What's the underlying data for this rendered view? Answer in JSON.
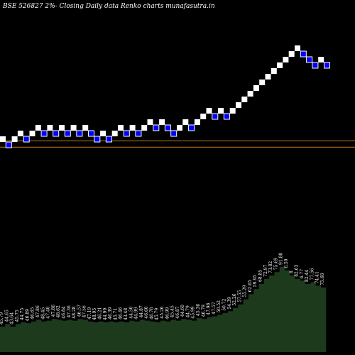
{
  "title": "BSE 526827 2%-  Closing Daily data  Renko  charts munafasutra.in",
  "colors": {
    "background": "#000000",
    "up_brick": "#ffffff",
    "down_brick": "#0000ff",
    "down_brick_border": "#ffffff",
    "hline": "#c87a1e",
    "volume_fill": "#1d3a1d",
    "text": "#ffffff"
  },
  "chart_data": [
    {
      "type": "renko",
      "title": "BSE 526827 2%-  Closing Daily data  Renko  charts munafasutra.in",
      "levels": 25,
      "bricks": [
        {
          "level": 3,
          "dir": "up"
        },
        {
          "level": 2,
          "dir": "down"
        },
        {
          "level": 3,
          "dir": "up"
        },
        {
          "level": 4,
          "dir": "up"
        },
        {
          "level": 3,
          "dir": "down"
        },
        {
          "level": 4,
          "dir": "up"
        },
        {
          "level": 5,
          "dir": "up"
        },
        {
          "level": 4,
          "dir": "down"
        },
        {
          "level": 5,
          "dir": "up"
        },
        {
          "level": 4,
          "dir": "down"
        },
        {
          "level": 5,
          "dir": "up"
        },
        {
          "level": 4,
          "dir": "down"
        },
        {
          "level": 5,
          "dir": "up"
        },
        {
          "level": 4,
          "dir": "down"
        },
        {
          "level": 5,
          "dir": "up"
        },
        {
          "level": 4,
          "dir": "down"
        },
        {
          "level": 3,
          "dir": "down"
        },
        {
          "level": 4,
          "dir": "up"
        },
        {
          "level": 3,
          "dir": "down"
        },
        {
          "level": 4,
          "dir": "up"
        },
        {
          "level": 5,
          "dir": "up"
        },
        {
          "level": 4,
          "dir": "down"
        },
        {
          "level": 5,
          "dir": "up"
        },
        {
          "level": 4,
          "dir": "down"
        },
        {
          "level": 5,
          "dir": "up"
        },
        {
          "level": 6,
          "dir": "up"
        },
        {
          "level": 5,
          "dir": "down"
        },
        {
          "level": 6,
          "dir": "up"
        },
        {
          "level": 5,
          "dir": "down"
        },
        {
          "level": 4,
          "dir": "down"
        },
        {
          "level": 5,
          "dir": "up"
        },
        {
          "level": 6,
          "dir": "up"
        },
        {
          "level": 5,
          "dir": "down"
        },
        {
          "level": 6,
          "dir": "up"
        },
        {
          "level": 7,
          "dir": "up"
        },
        {
          "level": 8,
          "dir": "up"
        },
        {
          "level": 7,
          "dir": "down"
        },
        {
          "level": 8,
          "dir": "up"
        },
        {
          "level": 7,
          "dir": "down"
        },
        {
          "level": 8,
          "dir": "up"
        },
        {
          "level": 9,
          "dir": "up"
        },
        {
          "level": 10,
          "dir": "up"
        },
        {
          "level": 11,
          "dir": "up"
        },
        {
          "level": 12,
          "dir": "up"
        },
        {
          "level": 13,
          "dir": "up"
        },
        {
          "level": 14,
          "dir": "up"
        },
        {
          "level": 15,
          "dir": "up"
        },
        {
          "level": 16,
          "dir": "up"
        },
        {
          "level": 17,
          "dir": "up"
        },
        {
          "level": 18,
          "dir": "up"
        },
        {
          "level": 19,
          "dir": "up"
        },
        {
          "level": 18,
          "dir": "down"
        },
        {
          "level": 17,
          "dir": "down"
        },
        {
          "level": 16,
          "dir": "down"
        },
        {
          "level": 17,
          "dir": "up"
        },
        {
          "level": 16,
          "dir": "down"
        }
      ],
      "reference_levels": [
        1.6,
        2.7
      ]
    },
    {
      "type": "area",
      "series_label": "volume",
      "values": [
        30,
        33,
        30,
        33,
        35,
        34,
        36,
        38,
        36,
        37,
        39,
        38,
        37,
        38,
        37,
        39,
        38,
        36,
        35,
        36,
        35,
        36,
        35,
        36,
        35,
        37,
        36,
        38,
        37,
        36,
        35,
        37,
        36,
        38,
        37,
        39,
        38,
        37,
        40,
        39,
        41,
        42,
        44,
        46,
        48,
        52,
        56,
        62,
        68,
        74,
        80,
        86,
        90,
        94,
        100,
        96,
        90,
        86,
        84,
        80,
        82,
        78,
        76
      ],
      "labels": [
        "45.79",
        "44.65",
        "43.64",
        "45.75",
        "44.75",
        "46.89",
        "46.65",
        "47.86",
        "48.45",
        "47.40",
        "47.86",
        "48.62",
        "46.84",
        "47.36",
        "48.28",
        "46.57",
        "47.56",
        "47.19",
        "48.95",
        "46.21",
        "44.99",
        "46.39",
        "45.71",
        "46.46",
        "43.48",
        "44.50",
        "44.99",
        "44.87",
        "46.60",
        "46.78",
        "45.79",
        "45.26",
        "46.99",
        "45.45",
        "46.87",
        "44.60",
        "44.79",
        "45.99",
        "45.36",
        "46.79",
        "47.98",
        "47.57",
        "50.52",
        "50.72",
        "54.39",
        "52.26",
        "57.55",
        "55.29",
        "62.65",
        "59.95",
        "68.85",
        "72.97",
        "73.82",
        "75.69",
        "91.88",
        "6.59",
        "8",
        "82.63",
        "6.77",
        "82.44",
        "77.56",
        "74.41",
        "75.68"
      ]
    }
  ]
}
